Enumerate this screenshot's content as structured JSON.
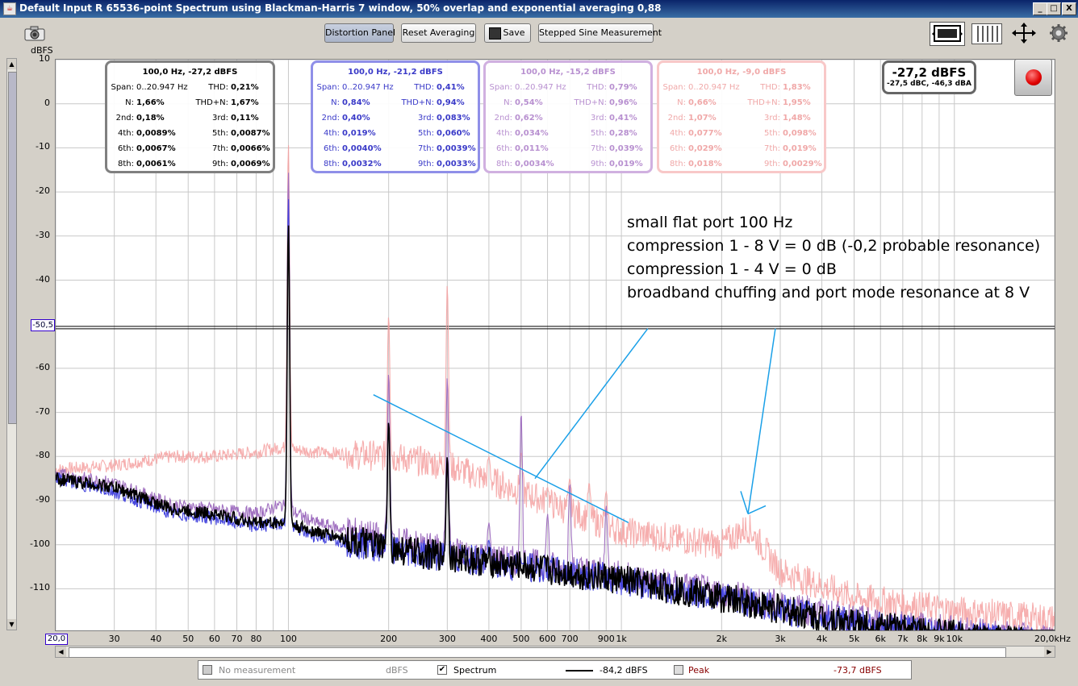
{
  "window": {
    "title": "Default Input R 65536-point Spectrum using Blackman-Harris 7 window, 50% overlap and exponential averaging 0,88",
    "minimize": "_",
    "maximize": "□",
    "close": "X"
  },
  "toolbar": {
    "distortion_panel": "Distortion Panel",
    "reset_averaging": "Reset Averaging",
    "save": "Save",
    "stepped_sine": "Stepped Sine Measurement"
  },
  "level_meter": {
    "main": "-27,2 dBFS",
    "sub": "-27,5 dBC, -46,3 dBA"
  },
  "axis": {
    "ylabel": "dBFS",
    "cursor_y": "-50,5",
    "cursor_x": "20,0",
    "x_end": "20,0kHz"
  },
  "panels": [
    {
      "header": "100,0 Hz, -27,2 dBFS",
      "span_label": "Span:",
      "span": "0..20.947 Hz",
      "thd": "0,21%",
      "n": "1,66%",
      "thdn": "1,67%",
      "h2": "0,18%",
      "h3": "0,11%",
      "h4": "0,0089%",
      "h5": "0,0087%",
      "h6": "0,0067%",
      "h7": "0,0066%",
      "h8": "0,0061%",
      "h9": "0,0069%"
    },
    {
      "header": "100,0 Hz, -21,2 dBFS",
      "span_label": "Span:",
      "span": "0..20.947 Hz",
      "thd": "0,41%",
      "n": "0,84%",
      "thdn": "0,94%",
      "h2": "0,40%",
      "h3": "0,083%",
      "h4": "0,019%",
      "h5": "0,060%",
      "h6": "0,0040%",
      "h7": "0,0039%",
      "h8": "0,0032%",
      "h9": "0,0033%"
    },
    {
      "header": "100,0 Hz, -15,2 dBFS",
      "span_label": "Span:",
      "span": "0..20.947 Hz",
      "thd": "0,79%",
      "n": "0,54%",
      "thdn": "0,96%",
      "h2": "0,62%",
      "h3": "0,41%",
      "h4": "0,034%",
      "h5": "0,28%",
      "h6": "0,011%",
      "h7": "0,039%",
      "h8": "0,0034%",
      "h9": "0,019%"
    },
    {
      "header": "100,0 Hz, -9,0 dBFS",
      "span_label": "Span:",
      "span": "0..20.947 Hz",
      "thd": "1,83%",
      "n": "0,66%",
      "thdn": "1,95%",
      "h2": "1,07%",
      "h3": "1,48%",
      "h4": "0,077%",
      "h5": "0,098%",
      "h6": "0,029%",
      "h7": "0,019%",
      "h8": "0,018%",
      "h9": "0,0029%"
    }
  ],
  "labels": {
    "thd": "THD:",
    "n": "N:",
    "thdn": "THD+N:",
    "h2": "2nd:",
    "h3": "3rd:",
    "h4": "4th:",
    "h5": "5th:",
    "h6": "6th:",
    "h7": "7th:",
    "h8": "8th:",
    "h9": "9th:"
  },
  "annotation": {
    "line1": "small flat port 100 Hz",
    "line2": "compression 1 - 8 V = 0 dB (-0,2 probable resonance)",
    "line3": "compression 1 - 4 V = 0 dB",
    "line4": "broadband chuffing and port mode resonance at 8 V"
  },
  "legend": {
    "no_measurement": "No measurement",
    "no_measurement_unit": "dBFS",
    "spectrum": "Spectrum",
    "spectrum_value": "-84,2 dBFS",
    "peak": "Peak",
    "peak_value": "-73,7 dBFS"
  },
  "colors": {
    "black": "#000000",
    "blue": "#4444dd",
    "purple": "#a070c0",
    "pink": "#f4a0a0",
    "annotation": "#1aa0e8",
    "panel1": "#808080",
    "panel2": "#8f8fe8",
    "panel3": "#d0b0e0",
    "panel4": "#f8c8c8"
  },
  "chart_data": {
    "type": "line",
    "xscale": "log",
    "xlim": [
      20,
      20000
    ],
    "ylim": [
      -120,
      10
    ],
    "ylabel": "dBFS",
    "y_ticks": [
      "10",
      "0",
      "-10",
      "-20",
      "-30",
      "-40",
      "-50,5",
      "-60",
      "-70",
      "-80",
      "-90",
      "-100",
      "-110"
    ],
    "y_tick_values": [
      10,
      0,
      -10,
      -20,
      -30,
      -40,
      -50.5,
      -60,
      -70,
      -80,
      -90,
      -100,
      -110
    ],
    "x_ticks": [
      "20,0",
      "30",
      "40",
      "50",
      "60",
      "70",
      "80",
      "100",
      "200",
      "300",
      "400",
      "500",
      "600",
      "700",
      "900",
      "1k",
      "2k",
      "3k",
      "4k",
      "5k",
      "6k",
      "7k",
      "8k",
      "9k",
      "10k",
      "20,0kHz"
    ],
    "x_tick_values": [
      20,
      30,
      40,
      50,
      60,
      70,
      80,
      100,
      200,
      300,
      400,
      500,
      600,
      700,
      900,
      1000,
      2000,
      3000,
      4000,
      5000,
      6000,
      7000,
      8000,
      9000,
      10000,
      20000
    ],
    "fundamental_hz": 100,
    "series": [
      {
        "color": "#000000",
        "fundamental_db": -27.2,
        "harmonics_db": [
          -72,
          -80,
          -103,
          -106,
          -109,
          -110,
          -111,
          -111
        ],
        "noise": [
          [
            20,
            -85
          ],
          [
            30,
            -87
          ],
          [
            45,
            -92
          ],
          [
            60,
            -93
          ],
          [
            80,
            -95
          ],
          [
            95,
            -95
          ],
          [
            120,
            -97
          ],
          [
            200,
            -101
          ],
          [
            400,
            -104
          ],
          [
            1000,
            -108
          ],
          [
            2000,
            -112
          ],
          [
            5000,
            -118
          ],
          [
            20000,
            -123
          ]
        ]
      },
      {
        "color": "#4444dd",
        "fundamental_db": -21.2,
        "harmonics_db": [
          -72,
          -82,
          -99,
          -104,
          -108,
          -109,
          -110,
          -110
        ],
        "noise": [
          [
            20,
            -85
          ],
          [
            30,
            -88
          ],
          [
            45,
            -93
          ],
          [
            60,
            -94
          ],
          [
            80,
            -96
          ],
          [
            95,
            -95
          ],
          [
            120,
            -98
          ],
          [
            200,
            -101
          ],
          [
            400,
            -104
          ],
          [
            1000,
            -108
          ],
          [
            2000,
            -112
          ],
          [
            5000,
            -118
          ],
          [
            20000,
            -123
          ]
        ]
      },
      {
        "color": "#a070c0",
        "fundamental_db": -15.2,
        "harmonics_db": [
          -61,
          -62,
          -95,
          -70,
          -93,
          -86,
          -107,
          -91
        ],
        "noise": [
          [
            20,
            -84
          ],
          [
            30,
            -86
          ],
          [
            45,
            -91
          ],
          [
            60,
            -92
          ],
          [
            80,
            -93
          ],
          [
            95,
            -91
          ],
          [
            120,
            -95
          ],
          [
            200,
            -99
          ],
          [
            400,
            -103
          ],
          [
            1000,
            -107
          ],
          [
            2000,
            -111
          ],
          [
            5000,
            -117
          ],
          [
            20000,
            -122
          ]
        ]
      },
      {
        "color": "#f4a0a0",
        "fundamental_db": -9.0,
        "harmonics_db": [
          -48,
          -41,
          -80,
          -79,
          -87,
          -85,
          -86,
          -88
        ],
        "noise": [
          [
            20,
            -83
          ],
          [
            30,
            -82
          ],
          [
            45,
            -80
          ],
          [
            60,
            -80
          ],
          [
            80,
            -79
          ],
          [
            95,
            -78
          ],
          [
            120,
            -79
          ],
          [
            200,
            -80
          ],
          [
            300,
            -82
          ],
          [
            500,
            -88
          ],
          [
            1000,
            -97
          ],
          [
            2000,
            -100
          ],
          [
            2400,
            -96
          ],
          [
            3000,
            -106
          ],
          [
            5000,
            -112
          ],
          [
            10000,
            -115
          ],
          [
            20000,
            -117
          ]
        ]
      }
    ],
    "annotation_lines": [
      {
        "from": [
          180,
          -66
        ],
        "to": [
          1050,
          -95
        ]
      },
      {
        "from": [
          1200,
          -51
        ],
        "to": [
          550,
          -85
        ]
      },
      {
        "from": [
          2900,
          -51
        ],
        "to": [
          2400,
          -93
        ]
      }
    ]
  }
}
